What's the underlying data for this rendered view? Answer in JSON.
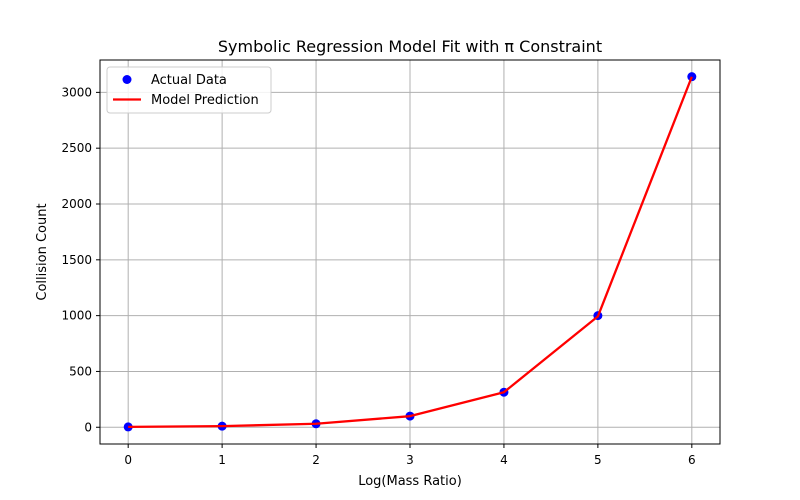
{
  "chart_data": {
    "type": "scatter",
    "title": "Symbolic Regression Model Fit with π Constraint",
    "xlabel": "Log(Mass Ratio)",
    "ylabel": "Collision Count",
    "xlim": [
      -0.3,
      6.3
    ],
    "ylim": [
      -150,
      3290
    ],
    "xticks": [
      0,
      1,
      2,
      3,
      4,
      5,
      6
    ],
    "yticks": [
      0,
      500,
      1000,
      1500,
      2000,
      2500,
      3000
    ],
    "grid": true,
    "legend_position": "upper-left",
    "series": [
      {
        "name": "Actual Data",
        "kind": "scatter",
        "color": "#0000ff",
        "x": [
          0,
          1,
          2,
          3,
          4,
          5,
          6
        ],
        "y": [
          3,
          10,
          31,
          100,
          314,
          1000,
          3141
        ]
      },
      {
        "name": "Model Prediction",
        "kind": "line",
        "color": "#ff0000",
        "x": [
          0,
          1,
          2,
          3,
          4,
          5,
          6
        ],
        "y": [
          3.14,
          9.93,
          31.4,
          99.3,
          314,
          993,
          3140
        ]
      }
    ]
  }
}
